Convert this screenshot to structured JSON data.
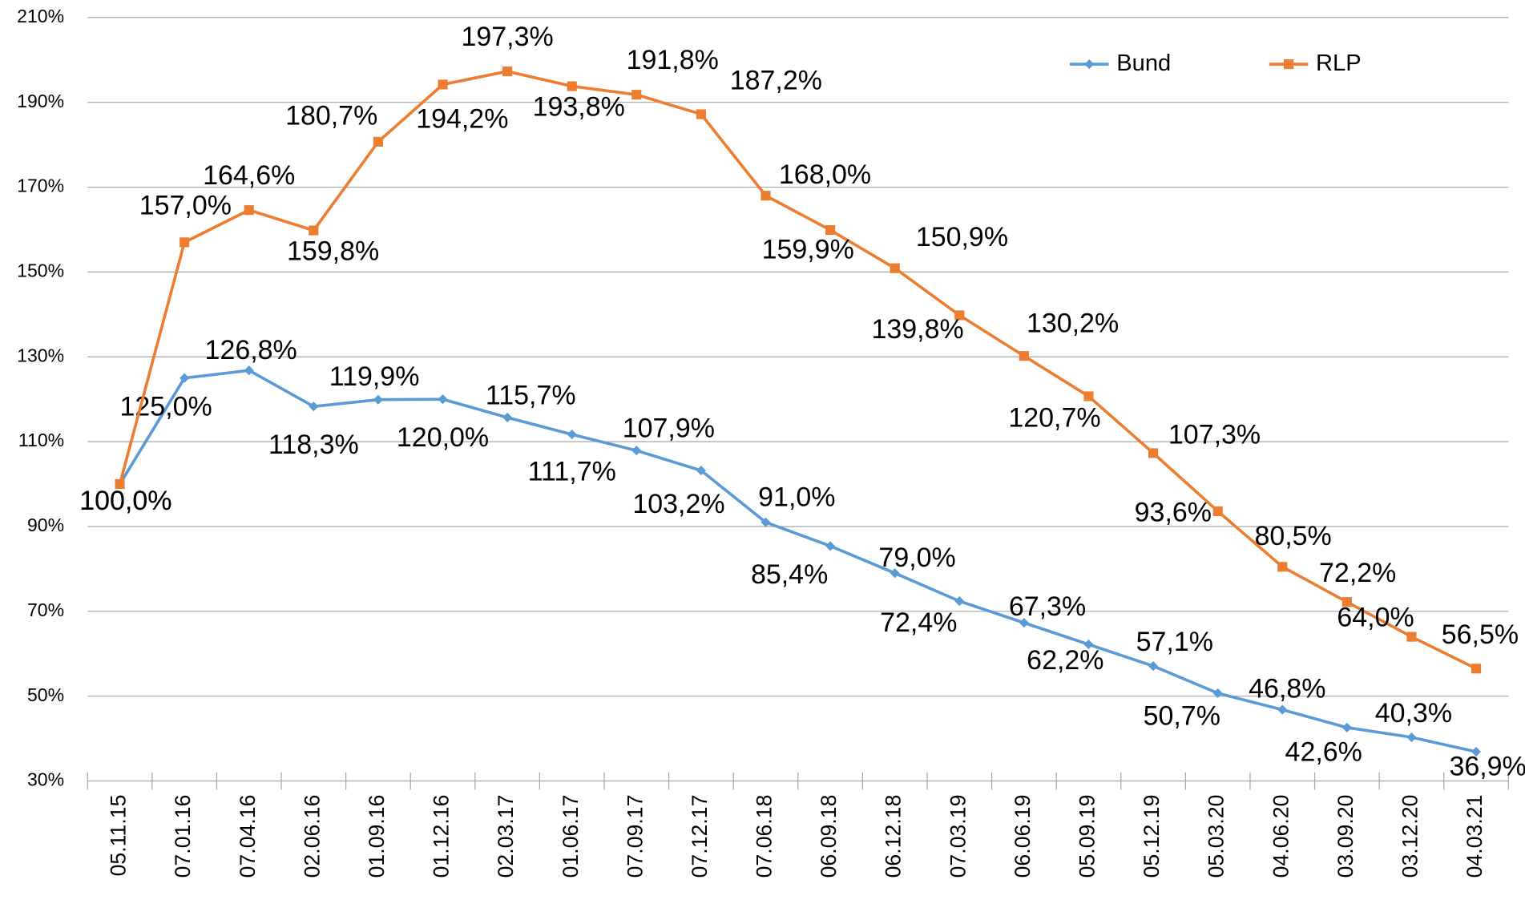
{
  "chart_data": {
    "type": "line",
    "categories": [
      "05.11.15",
      "07.01.16",
      "07.04.16",
      "02.06.16",
      "01.09.16",
      "01.12.16",
      "02.03.17",
      "01.06.17",
      "07.09.17",
      "07.12.17",
      "07.06.18",
      "06.09.18",
      "06.12.18",
      "07.03.19",
      "06.06.19",
      "05.09.19",
      "05.12.19",
      "05.03.20",
      "04.06.20",
      "03.09.20",
      "03.12.20",
      "04.03.21"
    ],
    "series": [
      {
        "name": "Bund",
        "color": "#5b9bd5",
        "marker": "diamond",
        "values": [
          100.0,
          125.0,
          126.8,
          118.3,
          119.9,
          120.0,
          115.7,
          111.7,
          107.9,
          103.2,
          91.0,
          85.4,
          79.0,
          72.4,
          67.3,
          62.2,
          57.1,
          50.7,
          46.8,
          42.6,
          40.3,
          36.9
        ],
        "value_labels": [
          "100,0%",
          "125,0%",
          "126,8%",
          "118,3%",
          "119,9%",
          "120,0%",
          "115,7%",
          "111,7%",
          "107,9%",
          "103,2%",
          "91,0%",
          "85,4%",
          "79,0%",
          "72,4%",
          "67,3%",
          "62,2%",
          "57,1%",
          "50,7%",
          "46,8%",
          "42,6%",
          "40,3%",
          "36,9%"
        ]
      },
      {
        "name": "RLP",
        "color": "#ed7d31",
        "marker": "square",
        "values": [
          100.0,
          157.0,
          164.6,
          159.8,
          180.7,
          194.2,
          197.3,
          193.8,
          191.8,
          187.2,
          168.0,
          159.9,
          150.9,
          139.8,
          130.2,
          120.7,
          107.3,
          93.6,
          80.5,
          72.2,
          64.0,
          56.5
        ],
        "value_labels": [
          "100,0%",
          "157,0%",
          "164,6%",
          "159,8%",
          "180,7%",
          "194,2%",
          "197,3%",
          "193,8%",
          "191,8%",
          "187,2%",
          "168,0%",
          "159,9%",
          "150,9%",
          "139,8%",
          "130,2%",
          "120,7%",
          "107,3%",
          "93,6%",
          "80,5%",
          "72,2%",
          "64,0%",
          "56,5%"
        ]
      }
    ],
    "ylim": [
      30,
      210
    ],
    "yticks": [
      {
        "value": 30,
        "label": "30%"
      },
      {
        "value": 50,
        "label": "50%"
      },
      {
        "value": 70,
        "label": "70%"
      },
      {
        "value": 90,
        "label": "90%"
      },
      {
        "value": 110,
        "label": "110%"
      },
      {
        "value": 130,
        "label": "130%"
      },
      {
        "value": 150,
        "label": "150%"
      },
      {
        "value": 170,
        "label": "170%"
      },
      {
        "value": 190,
        "label": "190%"
      },
      {
        "value": 210,
        "label": "210%"
      }
    ],
    "grid": true,
    "legend": "top-right"
  }
}
